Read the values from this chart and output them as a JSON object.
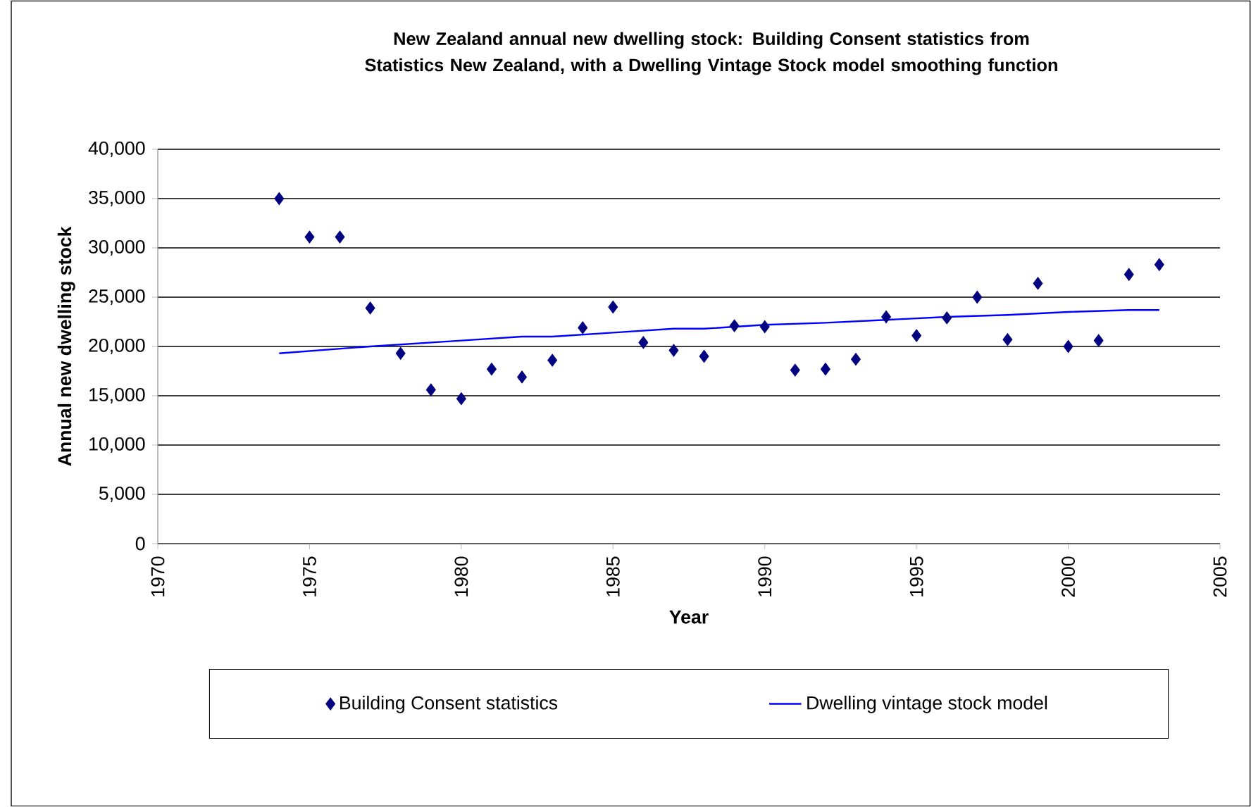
{
  "chart_data": {
    "type": "scatter",
    "title": "New Zealand annual new dwelling stock: Building Consent statistics from Statistics New Zealand, with a Dwelling Vintage Stock model smoothing function",
    "xlabel": "Year",
    "ylabel": "Annual new dwelling stock",
    "series": [
      {
        "name": "Building Consent statistics",
        "marker": "diamond",
        "color": "#000080",
        "x": [
          1974,
          1975,
          1976,
          1977,
          1978,
          1979,
          1980,
          1981,
          1982,
          1983,
          1984,
          1985,
          1986,
          1987,
          1988,
          1989,
          1990,
          1991,
          1992,
          1993,
          1994,
          1995,
          1996,
          1997,
          1998,
          1999,
          2000,
          2001,
          2002,
          2003
        ],
        "values": [
          35000,
          31100,
          31100,
          23900,
          19300,
          15600,
          14700,
          17700,
          16900,
          18600,
          21900,
          24000,
          20400,
          19600,
          19000,
          22100,
          22000,
          17600,
          17700,
          18700,
          23000,
          21100,
          22900,
          25000,
          20700,
          26400,
          20000,
          20600,
          27300,
          28300
        ]
      },
      {
        "name": "Dwelling vintage stock model",
        "type": "line",
        "marker": "none",
        "color": "#0000ff",
        "x": [
          1974,
          1977,
          1980,
          1982,
          1983,
          1985,
          1987,
          1988,
          1990,
          1992,
          1994,
          1996,
          1998,
          2000,
          2002,
          2003
        ],
        "values": [
          19300,
          20000,
          20600,
          21000,
          21000,
          21400,
          21800,
          21800,
          22200,
          22400,
          22700,
          23000,
          23200,
          23500,
          23700,
          23700
        ]
      }
    ],
    "xlim": [
      1970,
      2005
    ],
    "xticks": [
      1970,
      1975,
      1980,
      1985,
      1990,
      1995,
      2000,
      2005
    ],
    "ylim": [
      0,
      40000
    ],
    "yticks": [
      {
        "value": 0,
        "label": "0"
      },
      {
        "value": 5000,
        "label": "5,000"
      },
      {
        "value": 10000,
        "label": "10,000"
      },
      {
        "value": 15000,
        "label": "15,000"
      },
      {
        "value": 20000,
        "label": "20,000"
      },
      {
        "value": 25000,
        "label": "25,000"
      },
      {
        "value": 30000,
        "label": "30,000"
      },
      {
        "value": 35000,
        "label": "35,000"
      },
      {
        "value": 40000,
        "label": "40,000"
      }
    ],
    "grid": "y",
    "legend": "bottom"
  }
}
